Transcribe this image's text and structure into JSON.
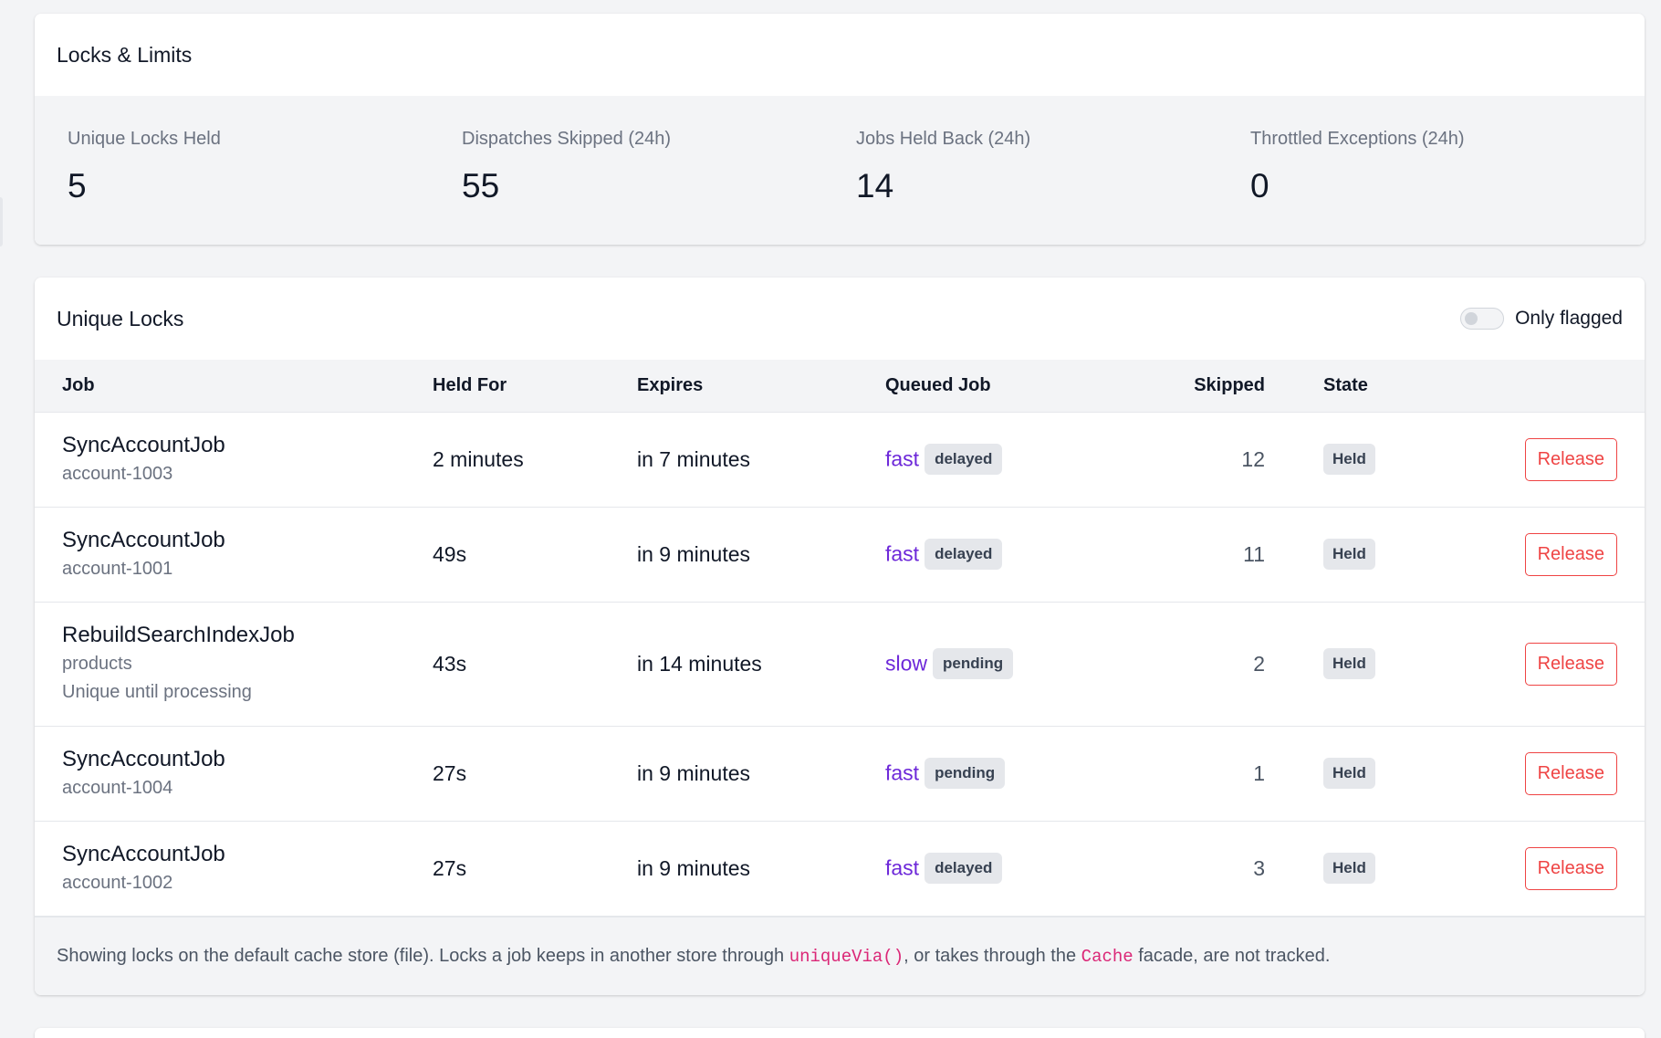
{
  "locks_limits": {
    "title": "Locks & Limits",
    "stats": [
      {
        "label": "Unique Locks Held",
        "value": "5"
      },
      {
        "label": "Dispatches Skipped (24h)",
        "value": "55"
      },
      {
        "label": "Jobs Held Back (24h)",
        "value": "14"
      },
      {
        "label": "Throttled Exceptions (24h)",
        "value": "0"
      }
    ]
  },
  "unique_locks": {
    "title": "Unique Locks",
    "toggle": {
      "label": "Only flagged",
      "checked": false
    },
    "columns": {
      "job": "Job",
      "held_for": "Held For",
      "expires": "Expires",
      "queued_job": "Queued Job",
      "skipped": "Skipped",
      "state": "State"
    },
    "rows": [
      {
        "job": "SyncAccountJob",
        "key": "account-1003",
        "note": "",
        "held_for": "2 minutes",
        "expires": "in 7 minutes",
        "queue": "fast",
        "queue_status": "delayed",
        "skipped": "12",
        "state": "Held",
        "action": "Release"
      },
      {
        "job": "SyncAccountJob",
        "key": "account-1001",
        "note": "",
        "held_for": "49s",
        "expires": "in 9 minutes",
        "queue": "fast",
        "queue_status": "delayed",
        "skipped": "11",
        "state": "Held",
        "action": "Release"
      },
      {
        "job": "RebuildSearchIndexJob",
        "key": "products",
        "note": "Unique until processing",
        "held_for": "43s",
        "expires": "in 14 minutes",
        "queue": "slow",
        "queue_status": "pending",
        "skipped": "2",
        "state": "Held",
        "action": "Release"
      },
      {
        "job": "SyncAccountJob",
        "key": "account-1004",
        "note": "",
        "held_for": "27s",
        "expires": "in 9 minutes",
        "queue": "fast",
        "queue_status": "pending",
        "skipped": "1",
        "state": "Held",
        "action": "Release"
      },
      {
        "job": "SyncAccountJob",
        "key": "account-1002",
        "note": "",
        "held_for": "27s",
        "expires": "in 9 minutes",
        "queue": "fast",
        "queue_status": "delayed",
        "skipped": "3",
        "state": "Held",
        "action": "Release"
      }
    ],
    "footer": {
      "part1": "Showing locks on the default cache store (file). Locks a job keeps in another store through ",
      "code1": "uniqueVia()",
      "part2": ", or takes through the ",
      "code2": "Cache",
      "part3": " facade, are not tracked."
    }
  },
  "colors": {
    "queue_link": "#6d28d9",
    "release": "#ef4444",
    "code": "#db2777"
  }
}
